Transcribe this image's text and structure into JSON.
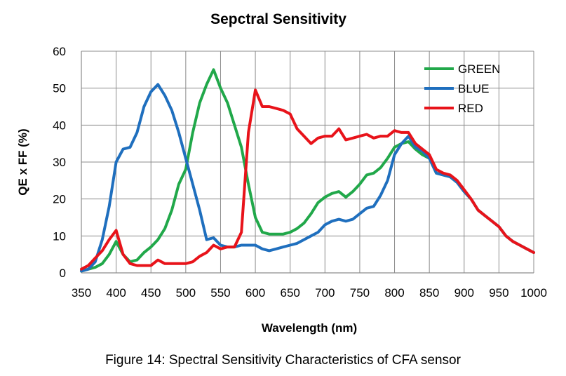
{
  "chart_data": {
    "type": "line",
    "title": "Sepctral Sensitivity",
    "xlabel": "Wavelength (nm)",
    "ylabel": "QE x FF (%)",
    "xlim": [
      350,
      1000
    ],
    "ylim": [
      0,
      60
    ],
    "xticks": [
      350,
      400,
      450,
      500,
      550,
      600,
      650,
      700,
      750,
      800,
      850,
      900,
      950,
      1000
    ],
    "yticks": [
      0,
      10,
      20,
      30,
      40,
      50,
      60
    ],
    "grid": "vertical and horizontal",
    "legend_position": "top-right",
    "series": [
      {
        "name": "GREEN",
        "color": "#21a84a",
        "points": [
          [
            350,
            0.5
          ],
          [
            360,
            1
          ],
          [
            370,
            1.5
          ],
          [
            380,
            2.5
          ],
          [
            390,
            5
          ],
          [
            400,
            8.5
          ],
          [
            410,
            5
          ],
          [
            420,
            3
          ],
          [
            430,
            3.5
          ],
          [
            440,
            5.5
          ],
          [
            450,
            7
          ],
          [
            460,
            9
          ],
          [
            470,
            12
          ],
          [
            480,
            17
          ],
          [
            490,
            24
          ],
          [
            500,
            28
          ],
          [
            510,
            38
          ],
          [
            520,
            46
          ],
          [
            530,
            51
          ],
          [
            540,
            55
          ],
          [
            550,
            50
          ],
          [
            560,
            46
          ],
          [
            570,
            40
          ],
          [
            580,
            34
          ],
          [
            590,
            24
          ],
          [
            600,
            15
          ],
          [
            610,
            11
          ],
          [
            620,
            10.5
          ],
          [
            630,
            10.5
          ],
          [
            640,
            10.5
          ],
          [
            650,
            11
          ],
          [
            660,
            12
          ],
          [
            670,
            13.5
          ],
          [
            680,
            16
          ],
          [
            690,
            19
          ],
          [
            700,
            20.5
          ],
          [
            710,
            21.5
          ],
          [
            720,
            22
          ],
          [
            730,
            20.5
          ],
          [
            740,
            22
          ],
          [
            750,
            24
          ],
          [
            760,
            26.5
          ],
          [
            770,
            27
          ],
          [
            780,
            28.5
          ],
          [
            790,
            31
          ],
          [
            800,
            34
          ],
          [
            810,
            35
          ],
          [
            820,
            35.5
          ],
          [
            830,
            33.5
          ],
          [
            840,
            32
          ],
          [
            850,
            31
          ],
          [
            860,
            27
          ],
          [
            870,
            26.5
          ],
          [
            880,
            26
          ],
          [
            890,
            24.5
          ],
          [
            900,
            22
          ],
          [
            910,
            20
          ],
          [
            920,
            17
          ],
          [
            930,
            15.5
          ],
          [
            940,
            14
          ],
          [
            950,
            12.5
          ],
          [
            960,
            10
          ],
          [
            970,
            8.5
          ],
          [
            980,
            7.5
          ],
          [
            990,
            6.5
          ],
          [
            1000,
            5.5
          ]
        ]
      },
      {
        "name": "BLUE",
        "color": "#1f6fbe",
        "points": [
          [
            350,
            0.5
          ],
          [
            360,
            1
          ],
          [
            370,
            3
          ],
          [
            380,
            9
          ],
          [
            390,
            18
          ],
          [
            400,
            30
          ],
          [
            410,
            33.5
          ],
          [
            420,
            34
          ],
          [
            430,
            38
          ],
          [
            440,
            45
          ],
          [
            450,
            49
          ],
          [
            460,
            51
          ],
          [
            470,
            48
          ],
          [
            480,
            44
          ],
          [
            490,
            38
          ],
          [
            500,
            31
          ],
          [
            510,
            24
          ],
          [
            520,
            17
          ],
          [
            530,
            9
          ],
          [
            540,
            9.5
          ],
          [
            550,
            7.5
          ],
          [
            560,
            7
          ],
          [
            570,
            7
          ],
          [
            580,
            7.5
          ],
          [
            590,
            7.5
          ],
          [
            600,
            7.5
          ],
          [
            610,
            6.5
          ],
          [
            620,
            6
          ],
          [
            630,
            6.5
          ],
          [
            640,
            7
          ],
          [
            650,
            7.5
          ],
          [
            660,
            8
          ],
          [
            670,
            9
          ],
          [
            680,
            10
          ],
          [
            690,
            11
          ],
          [
            700,
            13
          ],
          [
            710,
            14
          ],
          [
            720,
            14.5
          ],
          [
            730,
            14
          ],
          [
            740,
            14.5
          ],
          [
            750,
            16
          ],
          [
            760,
            17.5
          ],
          [
            770,
            18
          ],
          [
            780,
            21
          ],
          [
            790,
            25
          ],
          [
            800,
            32
          ],
          [
            810,
            35
          ],
          [
            820,
            37
          ],
          [
            830,
            34
          ],
          [
            840,
            33
          ],
          [
            850,
            31
          ],
          [
            860,
            27
          ],
          [
            870,
            26.5
          ],
          [
            880,
            26
          ],
          [
            890,
            24.5
          ],
          [
            900,
            22
          ],
          [
            910,
            20
          ],
          [
            920,
            17
          ],
          [
            930,
            15.5
          ],
          [
            940,
            14
          ],
          [
            950,
            12.5
          ],
          [
            960,
            10
          ],
          [
            970,
            8.5
          ],
          [
            980,
            7.5
          ],
          [
            990,
            6.5
          ],
          [
            1000,
            5.5
          ]
        ]
      },
      {
        "name": "RED",
        "color": "#e8131a",
        "points": [
          [
            350,
            1
          ],
          [
            360,
            2
          ],
          [
            370,
            4
          ],
          [
            380,
            6
          ],
          [
            390,
            9
          ],
          [
            400,
            11.5
          ],
          [
            410,
            5
          ],
          [
            420,
            2.5
          ],
          [
            430,
            2
          ],
          [
            440,
            2
          ],
          [
            450,
            2
          ],
          [
            460,
            3.5
          ],
          [
            470,
            2.5
          ],
          [
            480,
            2.5
          ],
          [
            490,
            2.5
          ],
          [
            500,
            2.5
          ],
          [
            510,
            3
          ],
          [
            520,
            4.5
          ],
          [
            530,
            5.5
          ],
          [
            540,
            7.5
          ],
          [
            550,
            6.5
          ],
          [
            560,
            7
          ],
          [
            570,
            7
          ],
          [
            580,
            11
          ],
          [
            590,
            38
          ],
          [
            600,
            49.5
          ],
          [
            610,
            45
          ],
          [
            620,
            45
          ],
          [
            630,
            44.5
          ],
          [
            640,
            44
          ],
          [
            650,
            43
          ],
          [
            660,
            39
          ],
          [
            670,
            37
          ],
          [
            680,
            35
          ],
          [
            690,
            36.5
          ],
          [
            700,
            37
          ],
          [
            710,
            37
          ],
          [
            720,
            39
          ],
          [
            730,
            36
          ],
          [
            740,
            36.5
          ],
          [
            750,
            37
          ],
          [
            760,
            37.5
          ],
          [
            770,
            36.5
          ],
          [
            780,
            37
          ],
          [
            790,
            37
          ],
          [
            800,
            38.5
          ],
          [
            810,
            38
          ],
          [
            820,
            38
          ],
          [
            830,
            35
          ],
          [
            840,
            33.5
          ],
          [
            850,
            32
          ],
          [
            860,
            28
          ],
          [
            870,
            27
          ],
          [
            880,
            26.5
          ],
          [
            890,
            25
          ],
          [
            900,
            22.5
          ],
          [
            910,
            20
          ],
          [
            920,
            17
          ],
          [
            930,
            15.5
          ],
          [
            940,
            14
          ],
          [
            950,
            12.5
          ],
          [
            960,
            10
          ],
          [
            970,
            8.5
          ],
          [
            980,
            7.5
          ],
          [
            990,
            6.5
          ],
          [
            1000,
            5.5
          ]
        ]
      }
    ]
  },
  "caption": "Figure 14: Spectral Sensitivity Characteristics of CFA sensor"
}
